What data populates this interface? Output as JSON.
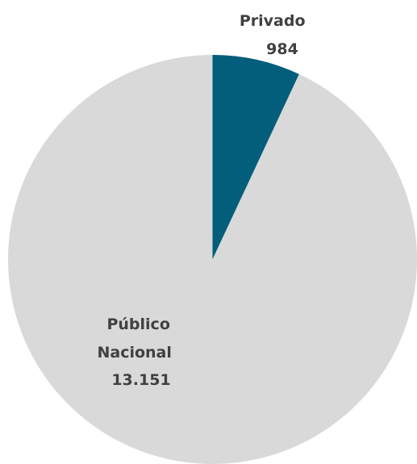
{
  "chart_data": {
    "type": "pie",
    "title": "",
    "slices": [
      {
        "label_lines": [
          "Privado",
          "984"
        ],
        "name": "Privado",
        "value": 984,
        "color": "#035e7b"
      },
      {
        "label_lines": [
          "Público",
          "Nacional",
          "13.151"
        ],
        "name": "Público Nacional",
        "value": 13151,
        "color": "#d9d9d9"
      }
    ],
    "legend": "none",
    "start_angle": "12 o'clock",
    "direction": "clockwise"
  }
}
